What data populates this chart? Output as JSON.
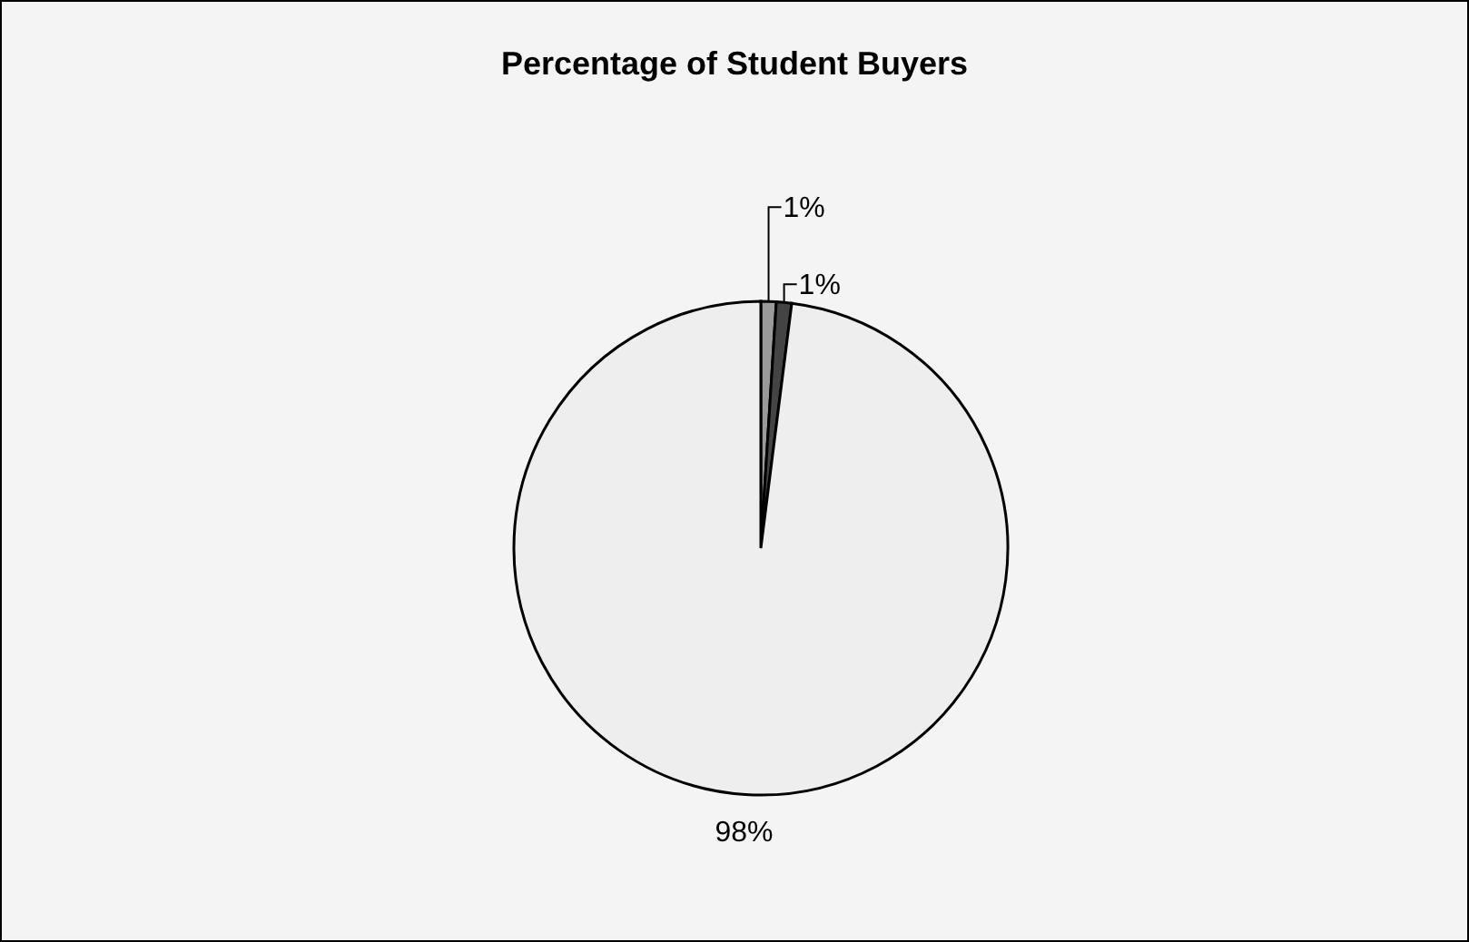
{
  "chart_data": {
    "type": "pie",
    "title": "Percentage of Student Buyers",
    "categories": [
      null,
      null,
      null
    ],
    "values": [
      1,
      1,
      98
    ],
    "colors": [
      "#9a9a9a",
      "#444444",
      "#eeeeee"
    ],
    "value_labels": [
      "1%",
      "1%",
      "98%"
    ],
    "legend": false
  }
}
